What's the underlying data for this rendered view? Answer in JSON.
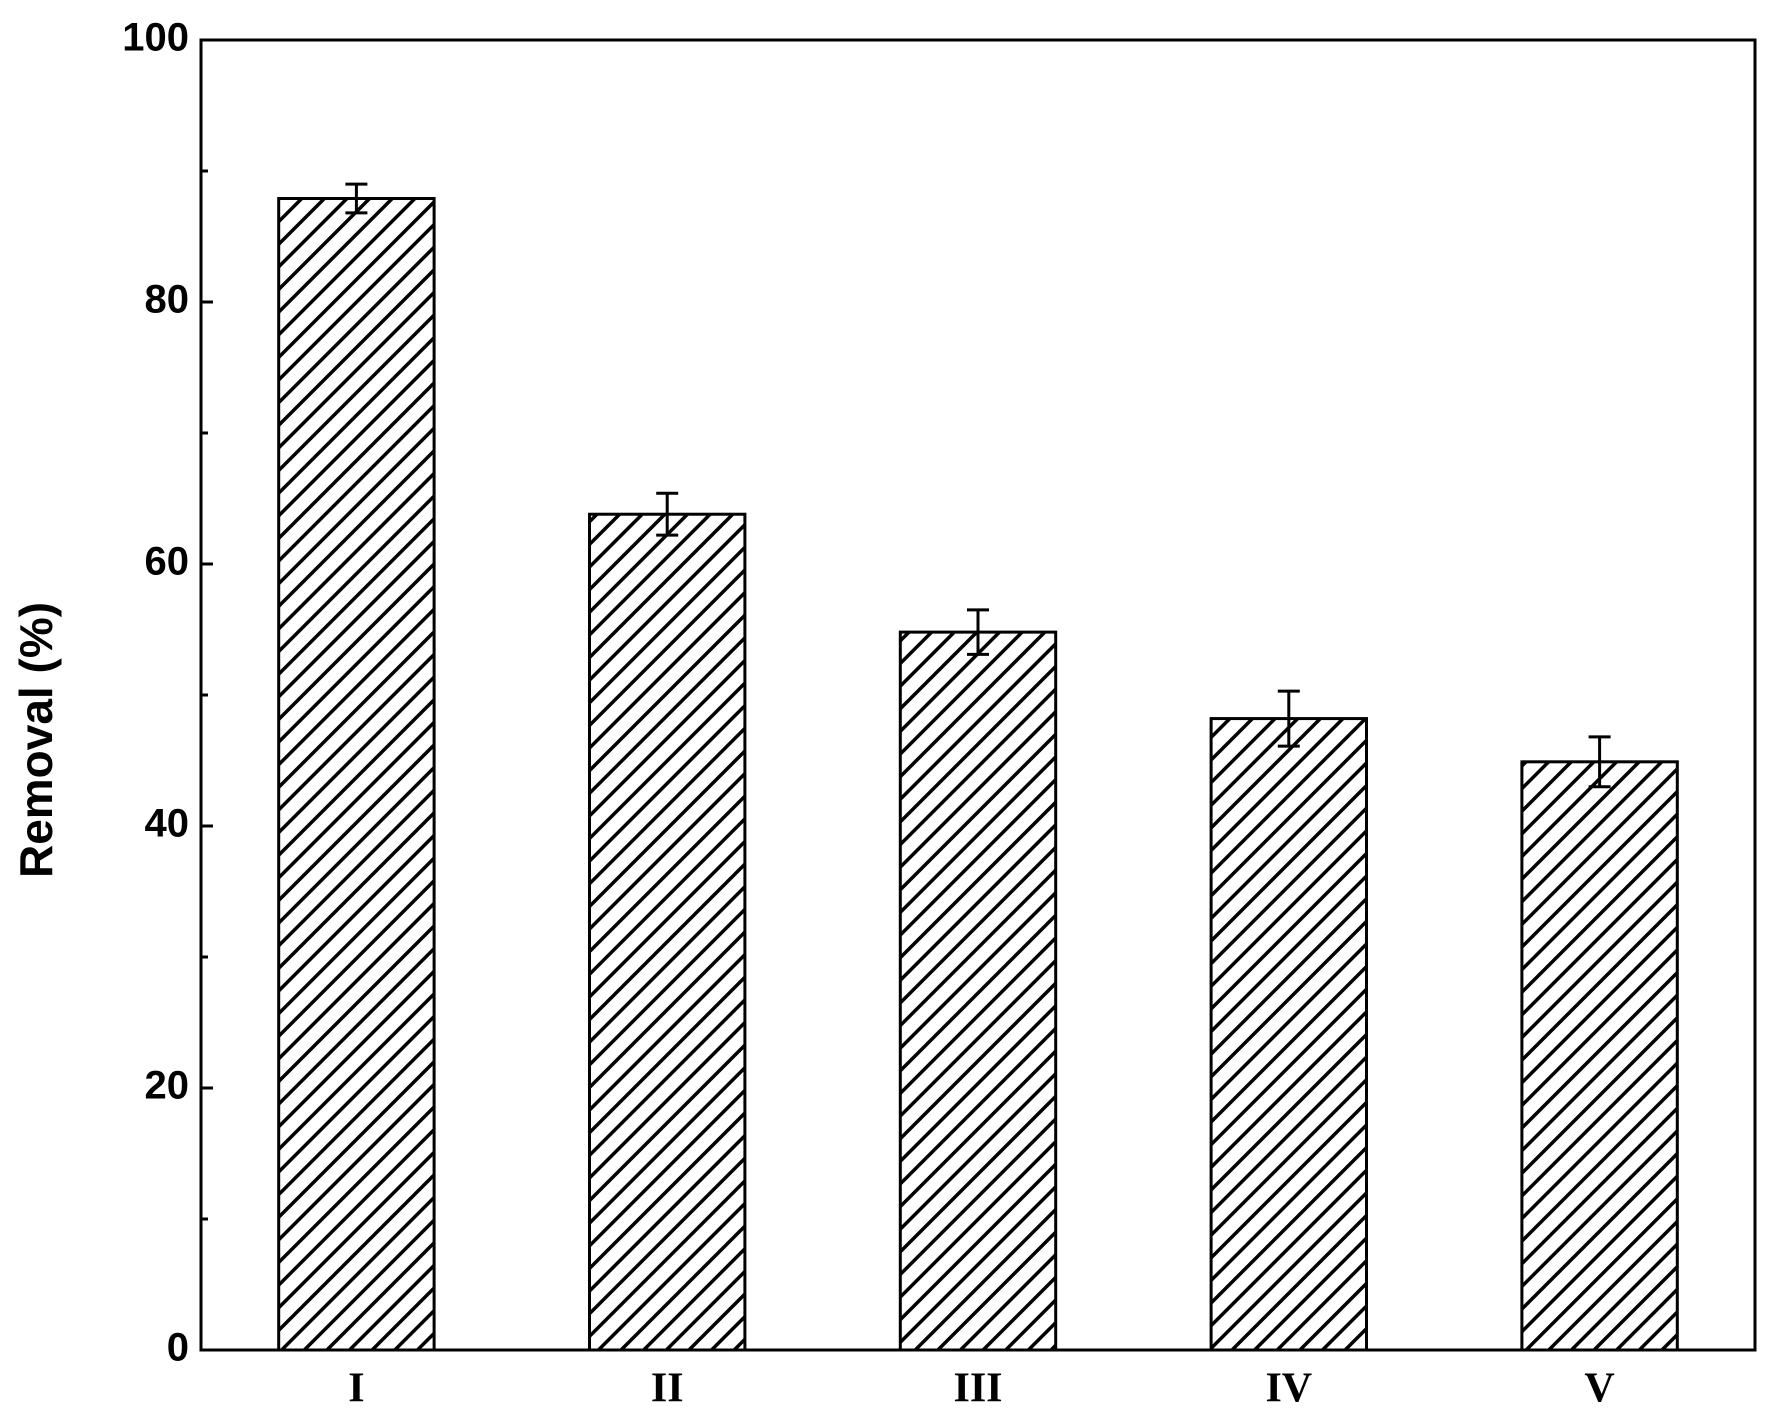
{
  "chart_data": {
    "type": "bar",
    "y_label": "Removal (%)",
    "categories": [
      "I",
      "II",
      "III",
      "IV",
      "V"
    ],
    "values": [
      87.9,
      63.8,
      54.8,
      48.2,
      44.9
    ],
    "errors": [
      1.1,
      1.6,
      1.7,
      2.1,
      1.9
    ],
    "color": "#000000",
    "ylim": [
      0,
      100
    ],
    "yticks": [
      0,
      20,
      40,
      60,
      80,
      100
    ],
    "yminorticks": [
      10,
      30,
      50,
      70,
      90
    ],
    "grid": false
  }
}
